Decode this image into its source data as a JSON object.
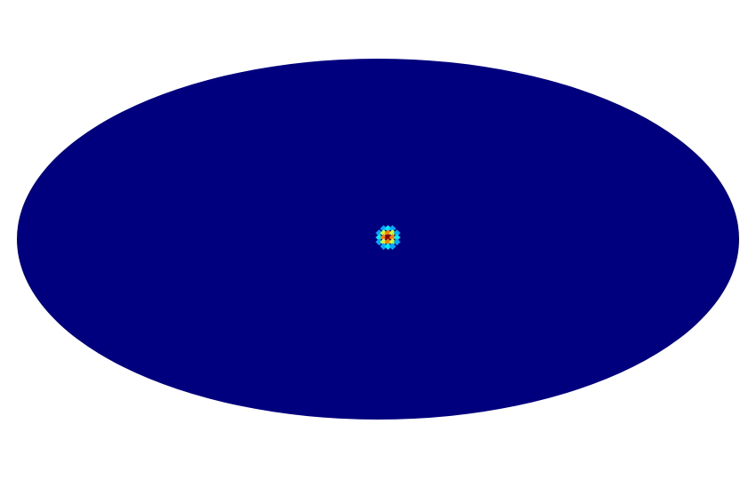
{
  "chart_data": {
    "type": "heatmap",
    "projection": "mollweide",
    "colormap": "jet",
    "background_color": "#00007f",
    "hotspot": {
      "lon": 5,
      "lat": 1,
      "peak_value": 1.0,
      "width_deg": 6
    },
    "grid": false,
    "legend": "none"
  },
  "colors": {
    "page_background": "#ffffff",
    "map_background": "#00007f",
    "peak": "#d00000"
  }
}
